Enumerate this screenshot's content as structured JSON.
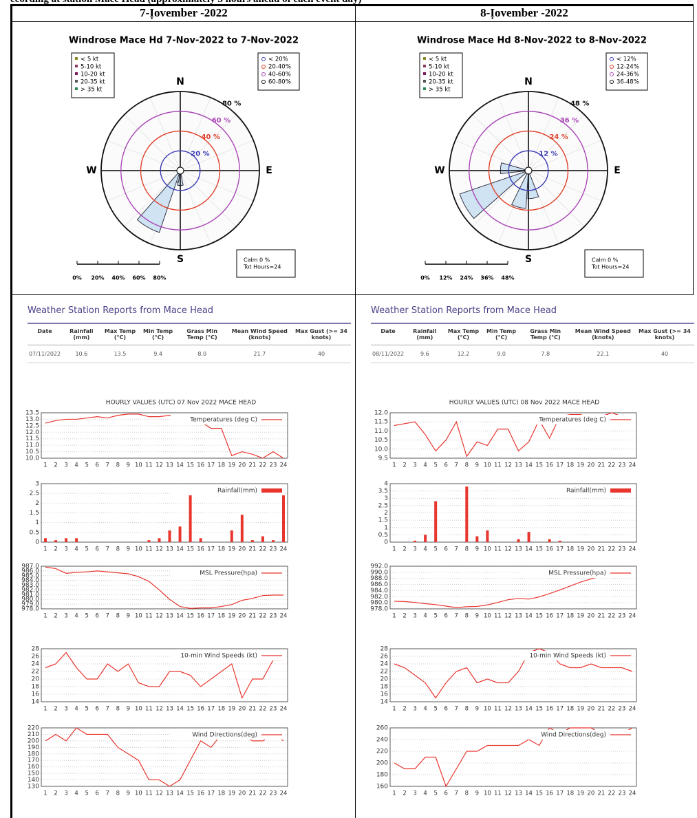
{
  "caption": "ecording at station Mace Head (approximately 3 hours ahead of each event day)",
  "columns": [
    {
      "header": "7-Ịovember -2022",
      "windrose": {
        "title": "Windrose  Mace Hd 7-Nov-2022 to 7-Nov-2022",
        "speed_legend": [
          "< 5 kt",
          "5-10 kt",
          "10-20 kt",
          "20-35 kt",
          "> 35 kt"
        ],
        "speed_colors": [
          "#8b8b2e",
          "#8b3a62",
          "#7a1f5c",
          "#555555",
          "#2e8b57"
        ],
        "percent_legend": [
          "< 20%",
          "20-40%",
          "40-60%",
          "60-80%"
        ],
        "rings": [
          {
            "value": 20,
            "label": "20 %"
          },
          {
            "value": 40,
            "label": "40 %"
          },
          {
            "value": 60,
            "label": "60 %"
          },
          {
            "value": 80,
            "label": "80 %"
          }
        ],
        "ring_colors": [
          "#3b3bb5",
          "#e0402a",
          "#a845b5",
          "#111111"
        ],
        "compass": [
          "N",
          "E",
          "S",
          "W"
        ],
        "petals": {
          "directions": [
            180,
            200,
            210
          ],
          "values": [
            15,
            12,
            66
          ]
        },
        "calm": "Calm 0 %",
        "total": "Tot Hours=24",
        "scale_labels": [
          "0%",
          "20%",
          "40%",
          "60%",
          "80%"
        ]
      },
      "report": {
        "title": "Weather Station Reports from Mace Head",
        "headers": [
          "Date",
          "Rainfall (mm)",
          "Max Temp (°C)",
          "Min Temp (°C)",
          "Grass Min Temp (°C)",
          "Mean Wind Speed (knots)",
          "Max Gust (>= 34 knots)"
        ],
        "row": [
          "07/11/2022",
          "10.6",
          "13.5",
          "9.4",
          "8.0",
          "21.7",
          "40"
        ]
      },
      "hourly_title": "HOURLY VALUES (UTC) 07 Nov 2022  MACE HEAD",
      "charts": [
        {
          "type": "line",
          "label": "Temperatures (deg C)",
          "color": "#e8352e",
          "grid": true,
          "xlim": [
            1,
            24
          ],
          "ylim": [
            10,
            13.5
          ],
          "yticks": [
            {
              "value": 10,
              "label": "10.0"
            },
            10.5,
            {
              "value": 11,
              "label": "11.0"
            },
            11.5,
            {
              "value": 12,
              "label": "12.0"
            },
            12.5,
            {
              "value": 13,
              "label": "13.0"
            },
            13.5
          ],
          "x": [
            1,
            2,
            3,
            4,
            5,
            6,
            7,
            8,
            9,
            10,
            11,
            12,
            13,
            14,
            15,
            16,
            17,
            18,
            19,
            20,
            21,
            22,
            23,
            24
          ],
          "values": [
            12.7,
            12.9,
            13.0,
            13.0,
            13.1,
            13.2,
            13.1,
            13.3,
            13.4,
            13.4,
            13.2,
            13.2,
            13.3,
            13.1,
            12.7,
            12.8,
            12.3,
            12.3,
            10.2,
            10.5,
            10.3,
            10.0,
            10.5,
            10.0
          ]
        },
        {
          "type": "bar",
          "label": "Rainfall(mm)",
          "color": "#e8352e",
          "grid": true,
          "xlim": [
            1,
            24
          ],
          "ylim": [
            0,
            3
          ],
          "yticks": [
            0,
            0.5,
            1,
            1.5,
            2,
            2.5,
            3
          ],
          "x": [
            1,
            2,
            3,
            4,
            5,
            6,
            7,
            8,
            9,
            10,
            11,
            12,
            13,
            14,
            15,
            16,
            17,
            18,
            19,
            20,
            21,
            22,
            23,
            24
          ],
          "values": [
            0.2,
            0.1,
            0.2,
            0.2,
            0,
            0,
            0,
            0,
            0,
            0,
            0.1,
            0.2,
            0.6,
            0.8,
            2.8,
            0.2,
            0,
            0,
            0.6,
            1.4,
            0.1,
            0.3,
            0.1,
            2.5
          ]
        },
        {
          "type": "line",
          "label": "MSL Pressure(hpa)",
          "color": "#e8352e",
          "grid": true,
          "xlim": [
            1,
            24
          ],
          "ylim": [
            978,
            987
          ],
          "yticks": [
            {
              "value": 978,
              "label": "978.0"
            },
            {
              "value": 979,
              "label": "979.0"
            },
            {
              "value": 980,
              "label": "980.0"
            },
            {
              "value": 981,
              "label": "981.0"
            },
            {
              "value": 982,
              "label": "982.0"
            },
            {
              "value": 983,
              "label": "983.0"
            },
            {
              "value": 984,
              "label": "984.0"
            },
            {
              "value": 985,
              "label": "985.0"
            },
            {
              "value": 986,
              "label": "986.0"
            },
            {
              "value": 987,
              "label": "987.0"
            }
          ],
          "x": [
            1,
            2,
            3,
            4,
            5,
            6,
            7,
            8,
            9,
            10,
            11,
            12,
            13,
            14,
            15,
            16,
            17,
            18,
            19,
            20,
            21,
            22,
            23,
            24
          ],
          "values": [
            986.8,
            986.5,
            985.5,
            985.7,
            985.8,
            986.0,
            985.8,
            985.6,
            985.4,
            984.8,
            983.8,
            982.0,
            980.0,
            978.5,
            978.1,
            978.2,
            978.2,
            978.5,
            978.9,
            979.8,
            980.2,
            980.8,
            980.9,
            980.9
          ]
        },
        {
          "type": "line",
          "label": "10-min Wind Speeds (kt)",
          "color": "#e8352e",
          "grid": true,
          "xlim": [
            1,
            24
          ],
          "ylim": [
            14,
            28
          ],
          "yticks": [
            14,
            16,
            18,
            20,
            22,
            24,
            26,
            28
          ],
          "x": [
            1,
            2,
            3,
            4,
            5,
            6,
            7,
            8,
            9,
            10,
            11,
            12,
            13,
            14,
            15,
            16,
            17,
            18,
            19,
            20,
            21,
            22,
            23,
            24
          ],
          "values": [
            23,
            24,
            27,
            23,
            20,
            20,
            24,
            22,
            24,
            19,
            18,
            18,
            22,
            22,
            21,
            18,
            20,
            22,
            24,
            15,
            20,
            20,
            25,
            25
          ]
        },
        {
          "type": "line",
          "label": "Wind Directions(deg)",
          "color": "#e8352e",
          "grid": true,
          "xlim": [
            1,
            24
          ],
          "ylim": [
            130,
            220
          ],
          "yticks": [
            130,
            140,
            150,
            160,
            170,
            180,
            190,
            200,
            210,
            220
          ],
          "x": [
            1,
            2,
            3,
            4,
            5,
            6,
            7,
            8,
            9,
            10,
            11,
            12,
            13,
            14,
            15,
            16,
            17,
            18,
            19,
            20,
            21,
            22,
            23,
            24
          ],
          "values": [
            200,
            210,
            200,
            220,
            210,
            210,
            210,
            190,
            180,
            170,
            140,
            140,
            130,
            140,
            170,
            200,
            190,
            210,
            210,
            210,
            200,
            200,
            210,
            200
          ]
        }
      ]
    },
    {
      "header": "8-Ịovember -2022",
      "windrose": {
        "title": "Windrose  Mace Hd 8-Nov-2022 to 8-Nov-2022",
        "speed_legend": [
          "< 5 kt",
          "5-10 kt",
          "10-20 kt",
          "20-35 kt",
          "> 35 kt"
        ],
        "speed_colors": [
          "#8b8b2e",
          "#8b3a62",
          "#7a1f5c",
          "#555555",
          "#2e8b57"
        ],
        "percent_legend": [
          "< 12%",
          "12-24%",
          "24-36%",
          "36-48%"
        ],
        "rings": [
          {
            "value": 12,
            "label": "12 %"
          },
          {
            "value": 24,
            "label": "24 %"
          },
          {
            "value": 36,
            "label": "36 %"
          },
          {
            "value": 48,
            "label": "48 %"
          }
        ],
        "ring_colors": [
          "#3b3bb5",
          "#e0402a",
          "#a845b5",
          "#111111"
        ],
        "compass": [
          "N",
          "E",
          "S",
          "W"
        ],
        "petals": {
          "directions": [
            170,
            195,
            240,
            275
          ],
          "values": [
            17,
            23,
            44,
            17
          ]
        },
        "calm": "Calm 0 %",
        "total": "Tot Hours=24",
        "scale_labels": [
          "0%",
          "12%",
          "24%",
          "36%",
          "48%"
        ]
      },
      "report": {
        "title": "Weather Station Reports from Mace Head",
        "headers": [
          "Date",
          "Rainfall (mm)",
          "Max Temp (°C)",
          "Min Temp (°C)",
          "Grass Min Temp (°C)",
          "Mean Wind Speed (knots)",
          "Max Gust (>= 34 knots)"
        ],
        "row": [
          "08/11/2022",
          "9.6",
          "12.2",
          "9.0",
          "7.8",
          "22.1",
          "40"
        ]
      },
      "hourly_title": "HOURLY VALUES (UTC) 08 Nov 2022  MACE HEAD",
      "charts": [
        {
          "type": "line",
          "label": "Temperatures (deg C)",
          "color": "#e8352e",
          "grid": true,
          "xlim": [
            1,
            24
          ],
          "ylim": [
            9.5,
            12
          ],
          "yticks": [
            9.5,
            {
              "value": 10,
              "label": "10.0"
            },
            10.5,
            {
              "value": 11,
              "label": "11.0"
            },
            11.5,
            {
              "value": 12,
              "label": "12.0"
            }
          ],
          "x": [
            1,
            2,
            3,
            4,
            5,
            6,
            7,
            8,
            9,
            10,
            11,
            12,
            13,
            14,
            15,
            16,
            17,
            18,
            19,
            20,
            21,
            22,
            23,
            24
          ],
          "values": [
            11.3,
            11.4,
            11.5,
            10.8,
            9.9,
            10.5,
            11.5,
            9.6,
            10.4,
            10.2,
            11.1,
            11.1,
            9.9,
            10.4,
            11.6,
            10.6,
            11.8,
            11.9,
            11.9,
            11.7,
            11.8,
            12.0,
            11.8,
            11.8
          ]
        },
        {
          "type": "bar",
          "label": "Rainfall(mm)",
          "color": "#e8352e",
          "grid": true,
          "xlim": [
            1,
            24
          ],
          "ylim": [
            0,
            4
          ],
          "yticks": [
            0,
            0.5,
            1,
            1.5,
            2,
            2.5,
            3,
            3.5,
            4
          ],
          "x": [
            1,
            2,
            3,
            4,
            5,
            6,
            7,
            8,
            9,
            10,
            11,
            12,
            13,
            14,
            15,
            16,
            17,
            18,
            19,
            20,
            21,
            22,
            23,
            24
          ],
          "values": [
            0,
            0,
            0.1,
            0.5,
            2.8,
            0,
            0,
            3.8,
            0.4,
            0.8,
            0,
            0,
            0.2,
            0.7,
            0,
            0.2,
            0.1,
            0,
            0,
            0,
            0,
            0,
            0,
            0
          ]
        },
        {
          "type": "line",
          "label": "MSL Pressure(hpa)",
          "color": "#e8352e",
          "grid": true,
          "xlim": [
            1,
            24
          ],
          "ylim": [
            978,
            992
          ],
          "yticks": [
            {
              "value": 978,
              "label": "978.0"
            },
            {
              "value": 980,
              "label": "980.0"
            },
            {
              "value": 982,
              "label": "982.0"
            },
            {
              "value": 984,
              "label": "984.0"
            },
            {
              "value": 986,
              "label": "986.0"
            },
            {
              "value": 988,
              "label": "988.0"
            },
            {
              "value": 990,
              "label": "990.0"
            },
            {
              "value": 992,
              "label": "992.0"
            }
          ],
          "x": [
            1,
            2,
            3,
            4,
            5,
            6,
            7,
            8,
            9,
            10,
            11,
            12,
            13,
            14,
            15,
            16,
            17,
            18,
            19,
            20,
            21,
            22,
            23,
            24
          ],
          "values": [
            980.5,
            980.4,
            980.1,
            979.7,
            979.4,
            978.9,
            978.4,
            978.7,
            978.8,
            979.3,
            980.1,
            981.0,
            981.4,
            981.2,
            981.9,
            983.0,
            984.2,
            985.5,
            986.8,
            987.8,
            988.8,
            989.7,
            990.5,
            991.2
          ]
        },
        {
          "type": "line",
          "label": "10-min Wind Speeds (kt)",
          "color": "#e8352e",
          "grid": true,
          "xlim": [
            1,
            24
          ],
          "ylim": [
            14,
            28
          ],
          "yticks": [
            14,
            16,
            18,
            20,
            22,
            24,
            26,
            28
          ],
          "x": [
            1,
            2,
            3,
            4,
            5,
            6,
            7,
            8,
            9,
            10,
            11,
            12,
            13,
            14,
            15,
            16,
            17,
            18,
            19,
            20,
            21,
            22,
            23,
            24
          ],
          "values": [
            24,
            23,
            21,
            19,
            15,
            19,
            22,
            23,
            19,
            20,
            19,
            19,
            22,
            27,
            28,
            27,
            24,
            23,
            23,
            24,
            23,
            23,
            23,
            22
          ]
        },
        {
          "type": "line",
          "label": "Wind Directions(deg)",
          "color": "#e8352e",
          "grid": true,
          "xlim": [
            1,
            24
          ],
          "ylim": [
            160,
            260
          ],
          "yticks": [
            160,
            180,
            200,
            220,
            240,
            260
          ],
          "x": [
            1,
            2,
            3,
            4,
            5,
            6,
            7,
            8,
            9,
            10,
            11,
            12,
            13,
            14,
            15,
            16,
            17,
            18,
            19,
            20,
            21,
            22,
            23,
            24
          ],
          "values": [
            200,
            190,
            190,
            210,
            210,
            160,
            190,
            220,
            220,
            230,
            230,
            230,
            230,
            240,
            230,
            260,
            250,
            260,
            260,
            260,
            250,
            250,
            250,
            260
          ]
        }
      ]
    }
  ]
}
